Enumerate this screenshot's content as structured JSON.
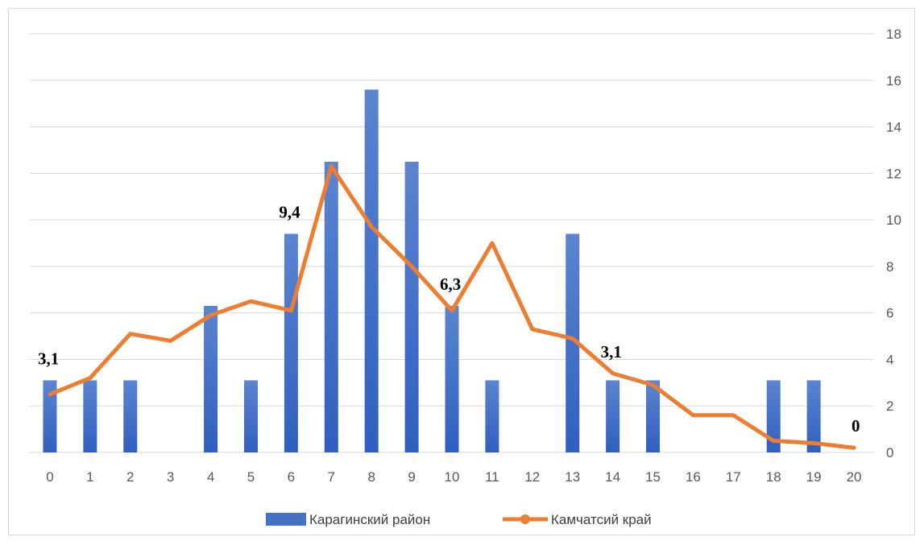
{
  "chart_data": {
    "type": "bar",
    "categories": [
      "0",
      "1",
      "2",
      "3",
      "4",
      "5",
      "6",
      "7",
      "8",
      "9",
      "10",
      "11",
      "12",
      "13",
      "14",
      "15",
      "16",
      "17",
      "18",
      "19",
      "20"
    ],
    "series": [
      {
        "name": "Карагинский район",
        "type": "bar",
        "color": "#4472c4",
        "values": [
          3.1,
          3.1,
          3.1,
          0,
          6.3,
          3.1,
          9.4,
          12.5,
          15.6,
          12.5,
          6.3,
          3.1,
          0,
          9.4,
          3.1,
          3.1,
          0,
          0,
          3.1,
          3.1,
          0
        ]
      },
      {
        "name": "Камчатсий край",
        "type": "line",
        "color": "#ed7d31",
        "values": [
          2.5,
          3.2,
          5.1,
          4.8,
          5.9,
          6.5,
          6.1,
          12.3,
          9.7,
          8.0,
          6.1,
          9.0,
          5.3,
          4.9,
          3.4,
          2.9,
          1.6,
          1.6,
          0.5,
          0.4,
          0.2
        ]
      }
    ],
    "y_axis": {
      "position": "right",
      "ylim": [
        0,
        18
      ],
      "ticks": [
        "0",
        "2",
        "4",
        "6",
        "8",
        "10",
        "12",
        "14",
        "16",
        "18"
      ]
    },
    "grid": true,
    "legend": "bottom",
    "data_labels": [
      {
        "index": 0,
        "text": "3,1"
      },
      {
        "index": 6,
        "text": "9,4"
      },
      {
        "index": 10,
        "text": "6,3"
      },
      {
        "index": 14,
        "text": "3,1"
      },
      {
        "index": 20,
        "text": "0"
      }
    ]
  }
}
